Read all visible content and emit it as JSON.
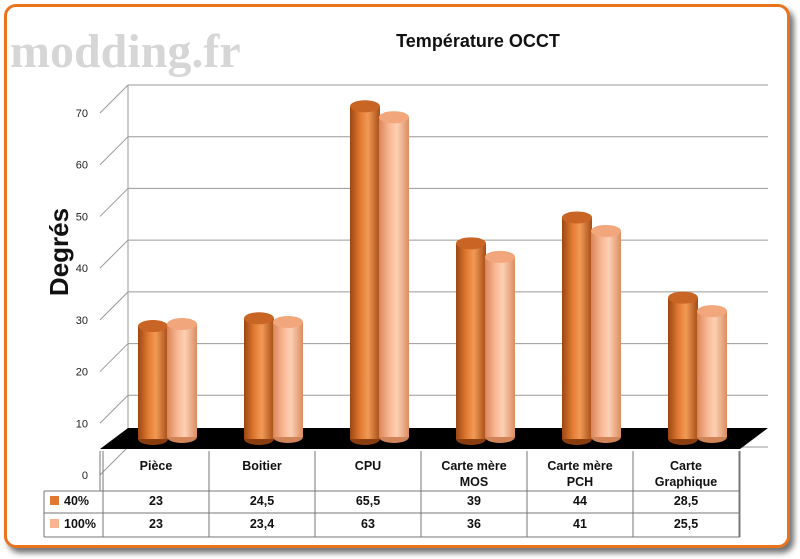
{
  "watermark": "modding.fr",
  "chart_data": {
    "type": "bar",
    "title": "Température OCCT",
    "ylabel": "Degrés",
    "xlabel": "",
    "ylim": [
      0,
      70
    ],
    "yticks": [
      0,
      10,
      20,
      30,
      40,
      50,
      60,
      70
    ],
    "grid": true,
    "legend": "table",
    "categories": [
      "Pièce",
      "Boitier",
      "CPU",
      "Carte mère MOS",
      "Carte mère PCH",
      "Carte Graphique"
    ],
    "category_lines": [
      [
        "Pièce"
      ],
      [
        "Boitier"
      ],
      [
        "CPU"
      ],
      [
        "Carte mère",
        "MOS"
      ],
      [
        "Carte mère",
        "PCH"
      ],
      [
        "Carte",
        "Graphique"
      ]
    ],
    "series": [
      {
        "name": "40%",
        "color": "#e07a32",
        "values": [
          23,
          24.5,
          65.5,
          39,
          44,
          28.5
        ],
        "labels": [
          "23",
          "24,5",
          "65,5",
          "39",
          "44",
          "28,5"
        ]
      },
      {
        "name": "100%",
        "color": "#f8b48e",
        "values": [
          23,
          23.4,
          63,
          36,
          41,
          25.5
        ],
        "labels": [
          "23",
          "23,4",
          "63",
          "36",
          "41",
          "25,5"
        ]
      }
    ],
    "colors": {
      "frame": "#e8741e",
      "floor": "#000000",
      "grid": "#9a9a9a"
    }
  }
}
